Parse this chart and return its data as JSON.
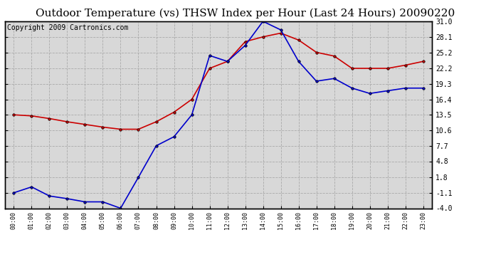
{
  "title": "Outdoor Temperature (vs) THSW Index per Hour (Last 24 Hours) 20090220",
  "copyright": "Copyright 2009 Cartronics.com",
  "x_labels": [
    "00:00",
    "01:00",
    "02:00",
    "03:00",
    "04:00",
    "05:00",
    "06:00",
    "07:00",
    "08:00",
    "09:00",
    "10:00",
    "11:00",
    "12:00",
    "13:00",
    "14:00",
    "15:00",
    "16:00",
    "17:00",
    "18:00",
    "19:00",
    "20:00",
    "21:00",
    "22:00",
    "23:00"
  ],
  "y_ticks": [
    -4.0,
    -1.1,
    1.8,
    4.8,
    7.7,
    10.6,
    13.5,
    16.4,
    19.3,
    22.2,
    25.2,
    28.1,
    31.0
  ],
  "y_min": -4.0,
  "y_max": 31.0,
  "temp_data": [
    13.5,
    13.3,
    12.8,
    12.2,
    11.7,
    11.2,
    10.8,
    10.8,
    12.2,
    14.0,
    16.4,
    22.2,
    23.5,
    27.2,
    28.1,
    28.8,
    27.5,
    25.2,
    24.5,
    22.2,
    22.2,
    22.2,
    22.8,
    23.5
  ],
  "thsw_data": [
    -1.1,
    0.0,
    -1.7,
    -2.2,
    -2.8,
    -2.8,
    -4.0,
    1.8,
    7.7,
    9.4,
    13.5,
    24.6,
    23.5,
    26.5,
    31.0,
    29.4,
    23.5,
    19.8,
    20.3,
    18.5,
    17.5,
    18.0,
    18.5,
    18.5
  ],
  "temp_color": "#cc0000",
  "thsw_color": "#0000cc",
  "bg_color": "#ffffff",
  "plot_bg_color": "#d8d8d8",
  "grid_color": "#aaaaaa",
  "title_fontsize": 11,
  "copyright_fontsize": 7
}
